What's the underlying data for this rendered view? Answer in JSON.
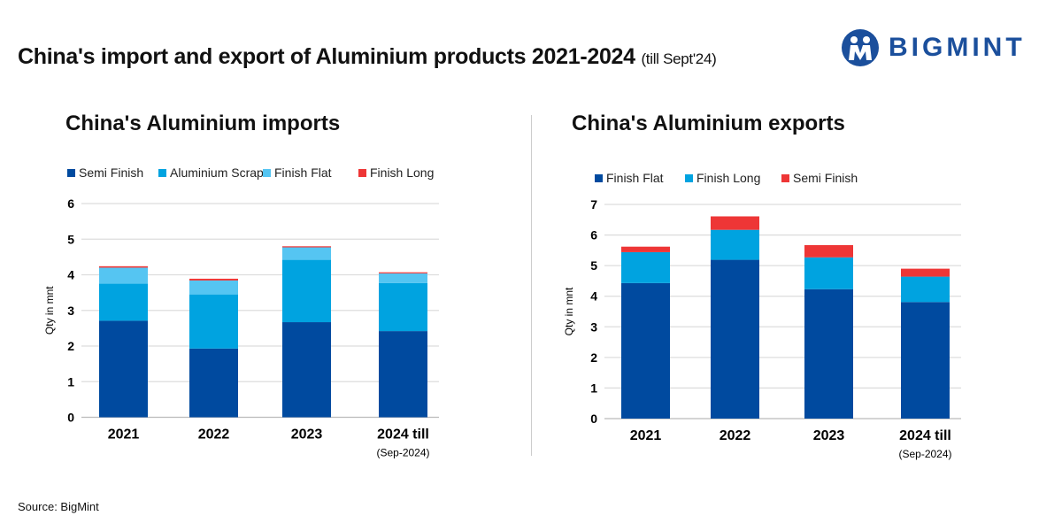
{
  "title": "China's import and export of Aluminium products 2021-2024",
  "title_note": "(till Sept'24)",
  "logo": "BIGMINT",
  "source": "Source: BigMint",
  "colors": {
    "dark_blue": "#004a9f",
    "blue": "#00a3e0",
    "light_blue": "#55c5f2",
    "red": "#ee3636"
  },
  "chart_data": [
    {
      "type": "bar",
      "stacked": true,
      "title": "China's Aluminium imports",
      "ylabel": "Qty in mnt",
      "ylim": [
        0,
        6
      ],
      "yticks": [
        0,
        1,
        2,
        3,
        4,
        5,
        6
      ],
      "grid": true,
      "legend": "top",
      "categories": [
        "2021",
        "2022",
        "2023",
        "2024 till"
      ],
      "category_note": "(Sep-2024)",
      "series": [
        {
          "name": "Semi Finish",
          "color": "#004a9f",
          "values": [
            2.71,
            1.93,
            2.67,
            2.42
          ]
        },
        {
          "name": "Aluminium Scrap",
          "color": "#00a3e0",
          "values": [
            1.04,
            1.52,
            1.75,
            1.35
          ]
        },
        {
          "name": "Finish Flat",
          "color": "#55c5f2",
          "values": [
            0.45,
            0.39,
            0.35,
            0.27
          ]
        },
        {
          "name": "Finish Long",
          "color": "#ee3636",
          "values": [
            0.04,
            0.05,
            0.03,
            0.03
          ]
        }
      ]
    },
    {
      "type": "bar",
      "stacked": true,
      "title": "China's Aluminium exports",
      "ylabel": "Qty in mnt",
      "ylim": [
        0,
        7
      ],
      "yticks": [
        0,
        1,
        2,
        3,
        4,
        5,
        6,
        7
      ],
      "grid": true,
      "legend": "top",
      "categories": [
        "2021",
        "2022",
        "2023",
        "2024 till"
      ],
      "category_note": "(Sep-2024)",
      "series": [
        {
          "name": "Finish Flat",
          "color": "#004a9f",
          "values": [
            4.43,
            5.19,
            4.23,
            3.81
          ]
        },
        {
          "name": "Finish Long",
          "color": "#00a3e0",
          "values": [
            1.01,
            0.98,
            1.04,
            0.83
          ]
        },
        {
          "name": "Semi Finish",
          "color": "#ee3636",
          "values": [
            0.18,
            0.44,
            0.4,
            0.26
          ]
        }
      ]
    }
  ]
}
